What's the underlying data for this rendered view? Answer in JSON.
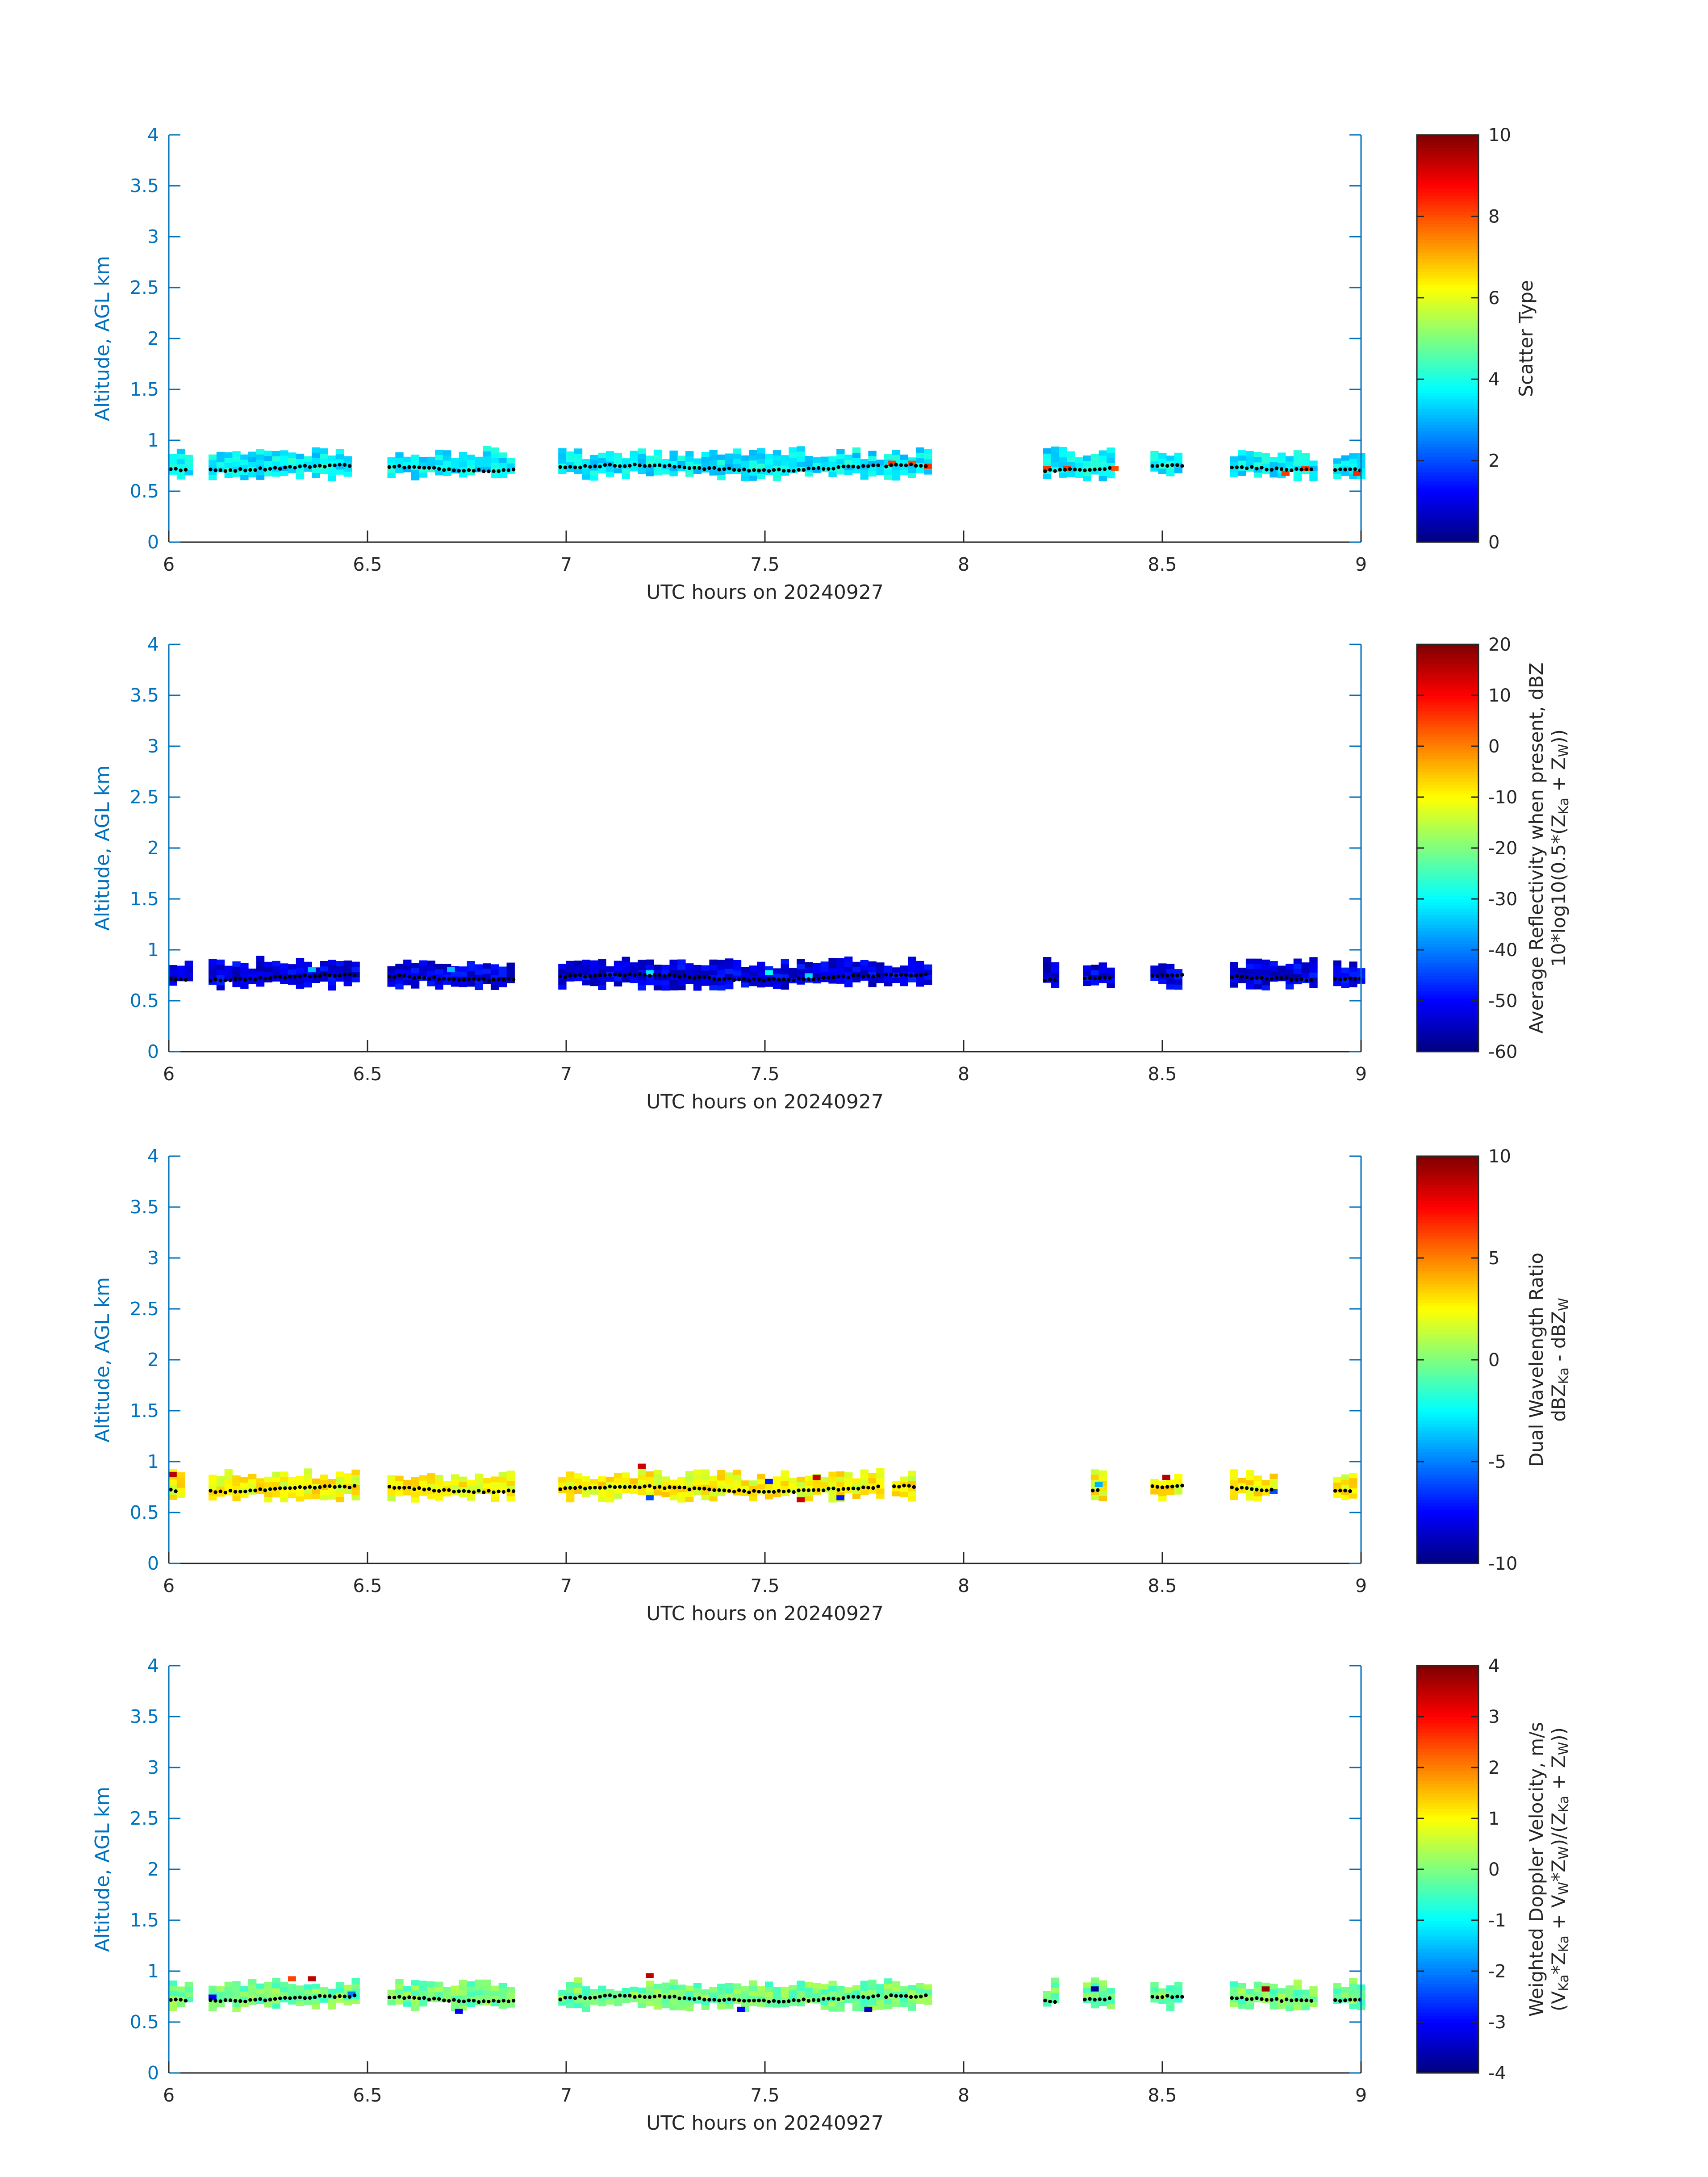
{
  "figure": {
    "date": "20240927"
  },
  "chart_data": [
    {
      "type": "heatmap",
      "title": "",
      "xlabel": "UTC hours on 20240927",
      "ylabel": "Altitude, AGL km",
      "xlim": [
        6,
        9
      ],
      "ylim": [
        0,
        4
      ],
      "xticks": [
        "6",
        "6.5",
        "7",
        "7.5",
        "8",
        "8.5",
        "9"
      ],
      "yticks": [
        "0",
        "0.5",
        "1",
        "1.5",
        "2",
        "2.5",
        "3",
        "3.5",
        "4"
      ],
      "colorbar": {
        "label_lines": [
          "Scatter Type"
        ],
        "range": [
          0,
          10
        ],
        "ticks": [
          "0",
          "2",
          "4",
          "6",
          "8",
          "10"
        ]
      },
      "dominant_value": 3.6,
      "segments": [
        [
          6.0,
          6.05
        ],
        [
          6.1,
          6.46
        ],
        [
          6.55,
          6.87
        ],
        [
          6.98,
          7.79
        ],
        [
          7.8,
          7.91
        ],
        [
          8.2,
          8.37
        ],
        [
          8.47,
          8.55
        ],
        [
          8.67,
          8.88
        ],
        [
          8.93,
          9.0
        ]
      ],
      "accents": [
        [
          7.81,
          0.75,
          8.2
        ],
        [
          7.86,
          0.75,
          8.0
        ],
        [
          7.9,
          0.72,
          8.3
        ],
        [
          8.2,
          0.7,
          8.2
        ],
        [
          8.25,
          0.7,
          8.2
        ],
        [
          8.37,
          0.7,
          8.0
        ],
        [
          8.8,
          0.65,
          8.2
        ],
        [
          8.85,
          0.7,
          8.2
        ],
        [
          8.98,
          0.65,
          8.4
        ]
      ],
      "ridge": "0.75 km"
    },
    {
      "type": "heatmap",
      "title": "",
      "xlabel": "UTC hours on 20240927",
      "ylabel": "Altitude, AGL km",
      "xlim": [
        6,
        9
      ],
      "ylim": [
        0,
        4
      ],
      "xticks": [
        "6",
        "6.5",
        "7",
        "7.5",
        "8",
        "8.5",
        "9"
      ],
      "yticks": [
        "0",
        "0.5",
        "1",
        "1.5",
        "2",
        "2.5",
        "3",
        "3.5",
        "4"
      ],
      "colorbar": {
        "label_lines": [
          "Average Reflectivity when present, dBZ",
          "10*log10(0.5*(Z",
          "Ka",
          " + Z",
          "W",
          "))"
        ],
        "range": [
          -60,
          20
        ],
        "ticks": [
          "-60",
          "-50",
          "-40",
          "-30",
          "-20",
          "-10",
          "0",
          "10",
          "20"
        ]
      },
      "dominant_value": -52,
      "segments": [
        [
          6.0,
          6.05
        ],
        [
          6.1,
          6.47
        ],
        [
          6.55,
          6.87
        ],
        [
          6.98,
          7.79
        ],
        [
          7.8,
          7.91
        ],
        [
          8.2,
          8.23
        ],
        [
          8.3,
          8.37
        ],
        [
          8.47,
          8.55
        ],
        [
          8.67,
          8.88
        ],
        [
          8.93,
          9.0
        ]
      ],
      "accents": [
        [
          6.35,
          0.78,
          -35
        ],
        [
          6.7,
          0.78,
          -35
        ],
        [
          7.2,
          0.75,
          -32
        ],
        [
          7.5,
          0.75,
          -30
        ],
        [
          7.6,
          0.72,
          -33
        ]
      ],
      "ridge": "0.75 km"
    },
    {
      "type": "heatmap",
      "title": "",
      "xlabel": "UTC hours on 20240927",
      "ylabel": "Altitude, AGL km",
      "xlim": [
        6,
        9
      ],
      "ylim": [
        0,
        4
      ],
      "xticks": [
        "6",
        "6.5",
        "7",
        "7.5",
        "8",
        "8.5",
        "9"
      ],
      "yticks": [
        "0",
        "0.5",
        "1",
        "1.5",
        "2",
        "2.5",
        "3",
        "3.5",
        "4"
      ],
      "colorbar": {
        "label_lines": [
          "Dual Wavelength Ratio",
          "dBZ",
          "Ka",
          " - dBZ",
          "W"
        ],
        "range": [
          -10,
          10
        ],
        "ticks": [
          "-10",
          "-5",
          "0",
          "5",
          "10"
        ]
      },
      "dominant_value": 2.5,
      "segments": [
        [
          6.0,
          6.03
        ],
        [
          6.1,
          6.47
        ],
        [
          6.55,
          6.87
        ],
        [
          6.98,
          7.79
        ],
        [
          7.82,
          7.88
        ],
        [
          8.32,
          8.35
        ],
        [
          8.47,
          8.55
        ],
        [
          8.67,
          8.78
        ],
        [
          8.93,
          8.98
        ]
      ],
      "accents": [
        [
          6.0,
          0.85,
          9.0
        ],
        [
          7.18,
          0.93,
          8.5
        ],
        [
          7.58,
          0.6,
          8.5
        ],
        [
          7.62,
          0.82,
          8.5
        ],
        [
          7.5,
          0.78,
          -7
        ],
        [
          7.68,
          0.62,
          -7
        ],
        [
          7.2,
          0.62,
          -6
        ],
        [
          8.33,
          0.75,
          -4
        ],
        [
          8.5,
          0.82,
          9
        ],
        [
          8.77,
          0.68,
          -6
        ]
      ],
      "ridge": "0.75 km"
    },
    {
      "type": "heatmap",
      "title": "",
      "xlabel": "UTC hours on 20240927",
      "ylabel": "Altitude, AGL km",
      "xlim": [
        6,
        9
      ],
      "ylim": [
        0,
        4
      ],
      "xticks": [
        "6",
        "6.5",
        "7",
        "7.5",
        "8",
        "8.5",
        "9"
      ],
      "yticks": [
        "0",
        "0.5",
        "1",
        "1.5",
        "2",
        "2.5",
        "3",
        "3.5",
        "4"
      ],
      "colorbar": {
        "label_lines": [
          "Weighted Doppler Velocity, m/s",
          "(V",
          "Ka",
          "*Z",
          "Ka",
          " + V",
          "W",
          "*Z",
          "W",
          ")/(Z",
          "Ka",
          " + Z",
          "W",
          "))"
        ],
        "range": [
          -4,
          4
        ],
        "ticks": [
          "-4",
          "-3",
          "-2",
          "-1",
          "0",
          "1",
          "2",
          "3",
          "4"
        ]
      },
      "dominant_value": -0.1,
      "segments": [
        [
          6.0,
          6.05
        ],
        [
          6.1,
          6.47
        ],
        [
          6.55,
          6.87
        ],
        [
          6.98,
          7.79
        ],
        [
          7.8,
          7.91
        ],
        [
          8.2,
          8.23
        ],
        [
          8.3,
          8.37
        ],
        [
          8.47,
          8.55
        ],
        [
          8.67,
          8.88
        ],
        [
          8.93,
          9.0
        ]
      ],
      "accents": [
        [
          6.1,
          0.72,
          -3
        ],
        [
          6.3,
          0.9,
          2.5
        ],
        [
          6.35,
          0.9,
          3.5
        ],
        [
          6.45,
          0.75,
          -2
        ],
        [
          6.72,
          0.58,
          -3
        ],
        [
          7.2,
          0.93,
          3.5
        ],
        [
          7.43,
          0.6,
          -3
        ],
        [
          7.75,
          0.6,
          -3.5
        ],
        [
          8.32,
          0.8,
          -3.8
        ],
        [
          8.75,
          0.8,
          3.8
        ]
      ],
      "ridge": "0.75 km"
    }
  ]
}
